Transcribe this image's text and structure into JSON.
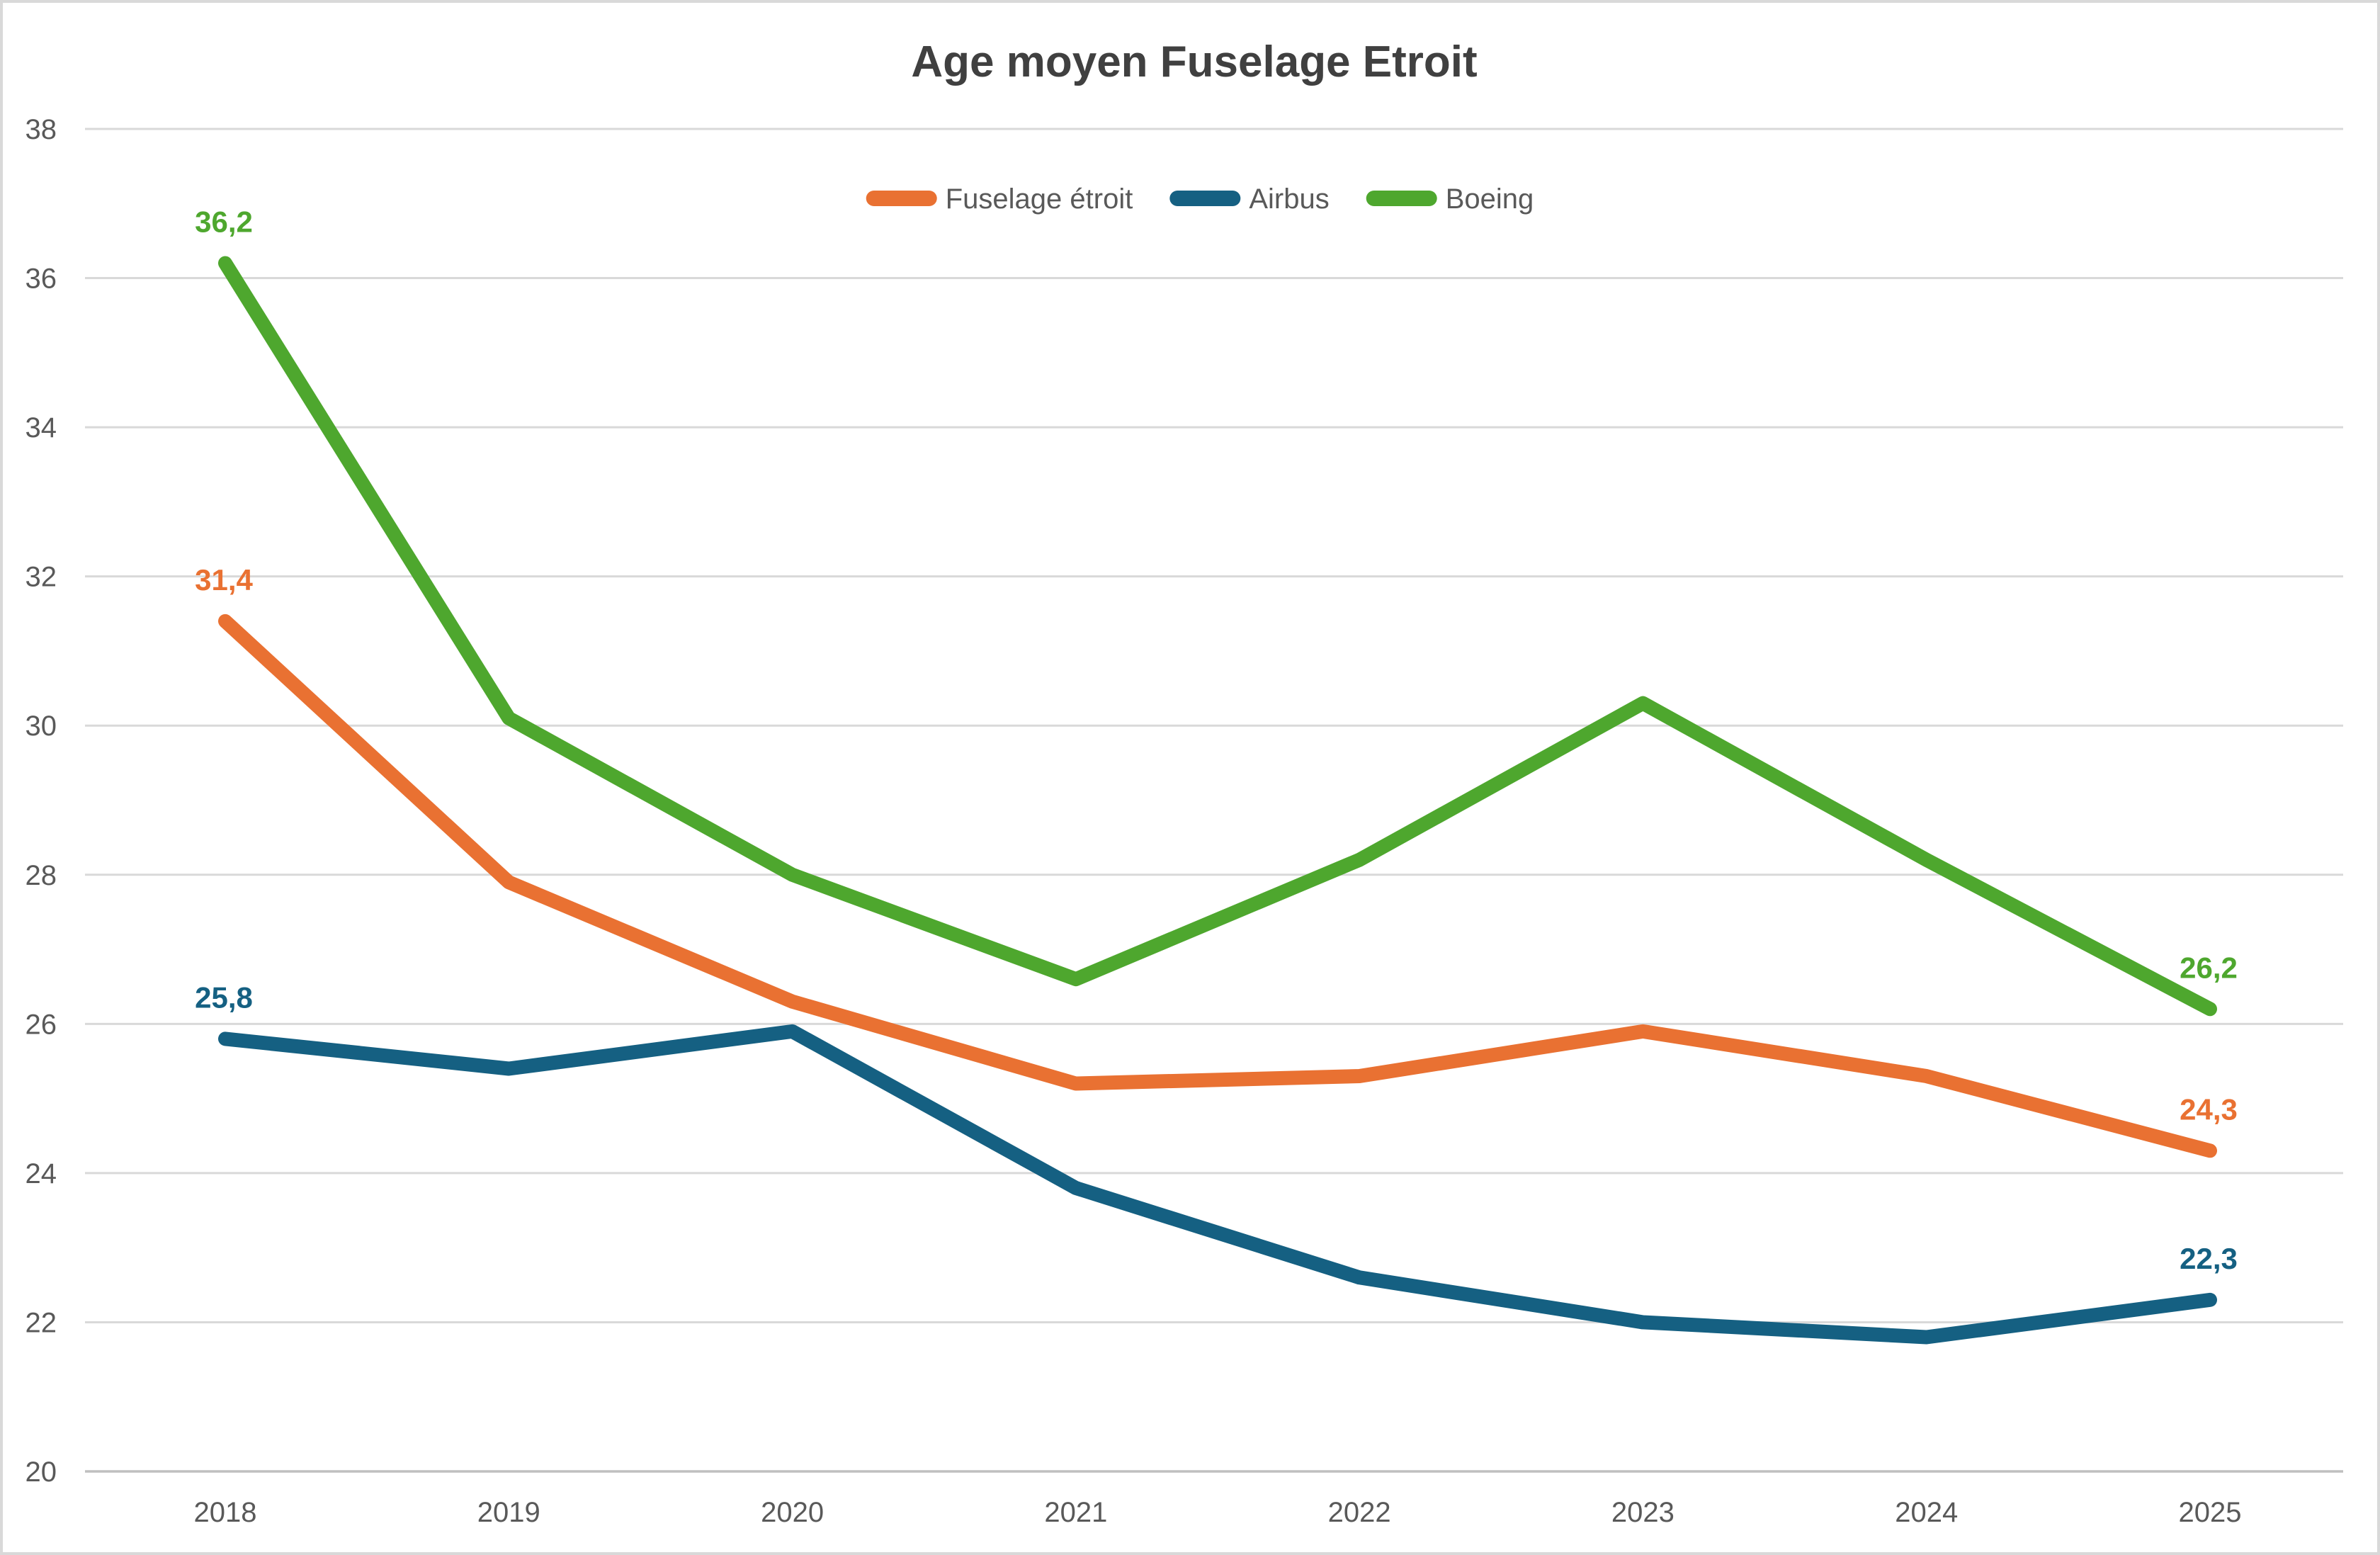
{
  "chart_data": {
    "type": "line",
    "title": "Age moyen Fuselage Etroit",
    "categories": [
      "2018",
      "2019",
      "2020",
      "2021",
      "2022",
      "2023",
      "2024",
      "2025"
    ],
    "series": [
      {
        "name": "Fuselage étroit",
        "color": "#E97132",
        "values": [
          31.4,
          27.9,
          26.3,
          25.2,
          25.3,
          25.9,
          25.3,
          24.3
        ],
        "first_label": "31,4",
        "last_label": "24,3"
      },
      {
        "name": "Airbus",
        "color": "#156082",
        "values": [
          25.8,
          25.4,
          25.9,
          23.8,
          22.6,
          22.0,
          21.8,
          22.3
        ],
        "first_label": "25,8",
        "last_label": "22,3"
      },
      {
        "name": "Boeing",
        "color": "#4EA72E",
        "values": [
          36.2,
          30.1,
          28.0,
          26.6,
          28.2,
          30.3,
          28.2,
          26.2
        ],
        "first_label": "36,2",
        "last_label": "26,2"
      }
    ],
    "ylim": [
      20,
      38
    ],
    "ytick_interval": 2,
    "yticks": [
      "38",
      "36",
      "34",
      "32",
      "30",
      "28",
      "26",
      "24",
      "22",
      "20"
    ],
    "grid": true,
    "legend_position": "top-center",
    "decimal_separator": ","
  },
  "styles": {
    "background": "#FFFFFF",
    "border_color": "#D9D9D9",
    "grid_color": "#D9D9D9",
    "axis_color": "#BFBFBF",
    "tick_text_color": "#595959",
    "title_color": "#404040"
  }
}
